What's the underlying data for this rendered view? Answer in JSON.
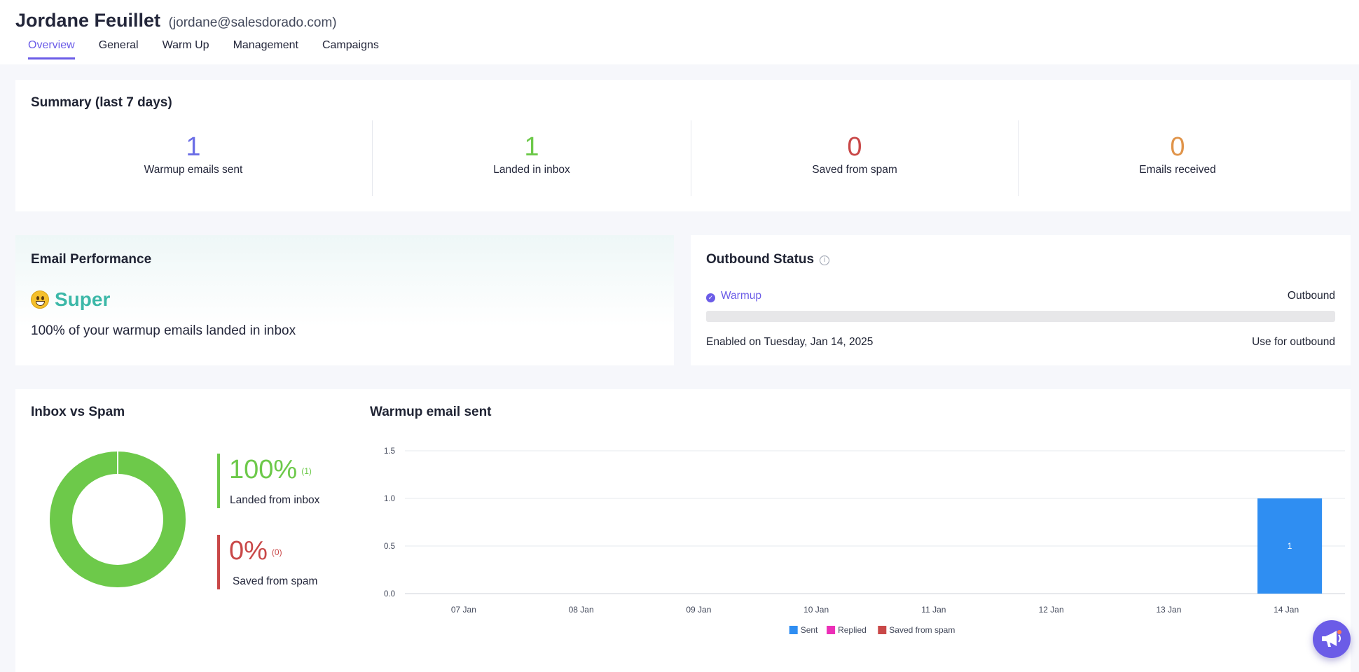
{
  "header": {
    "user_name": "Jordane Feuillet",
    "user_email": "(jordane@salesdorado.com)",
    "tabs": [
      {
        "label": "Overview",
        "active": true
      },
      {
        "label": "General",
        "active": false
      },
      {
        "label": "Warm Up",
        "active": false
      },
      {
        "label": "Management",
        "active": false
      },
      {
        "label": "Campaigns",
        "active": false
      }
    ]
  },
  "summary": {
    "title": "Summary (last 7 days)",
    "stats": [
      {
        "value": "1",
        "label": "Warmup emails sent",
        "color": "#6b6ee6"
      },
      {
        "value": "1",
        "label": "Landed in inbox",
        "color": "#6dc94a"
      },
      {
        "value": "0",
        "label": "Saved from spam",
        "color": "#c94848"
      },
      {
        "value": "0",
        "label": "Emails received",
        "color": "#e0944a"
      }
    ]
  },
  "performance": {
    "title": "Email Performance",
    "emoji_icon": "smiley-face-icon",
    "rating": "Super",
    "description": "100% of your warmup emails landed in inbox"
  },
  "outbound": {
    "title": "Outbound Status",
    "info_icon": "info-icon",
    "warmup_label": "Warmup",
    "outbound_label": "Outbound",
    "progress": 0,
    "enabled_text": "Enabled on Tuesday, Jan 14, 2025",
    "use_for_outbound": "Use for outbound"
  },
  "inbox_vs_spam": {
    "title": "Inbox vs Spam",
    "inbox_percent": "100%",
    "inbox_count": "(1)",
    "inbox_label": "Landed from inbox",
    "spam_percent": "0%",
    "spam_count": "(0)",
    "spam_label": "Saved from spam",
    "inbox_color": "#6dc94a",
    "spam_color": "#c94848",
    "donut_inbox_fraction": 1.0
  },
  "chart_data": {
    "type": "bar",
    "title": "Warmup email sent",
    "categories": [
      "07 Jan",
      "08 Jan",
      "09 Jan",
      "10 Jan",
      "11 Jan",
      "12 Jan",
      "13 Jan",
      "14 Jan"
    ],
    "series": [
      {
        "name": "Sent",
        "color": "#2f8ef2",
        "values": [
          0,
          0,
          0,
          0,
          0,
          0,
          0,
          1
        ]
      },
      {
        "name": "Replied",
        "color": "#ec2fb7",
        "values": [
          0,
          0,
          0,
          0,
          0,
          0,
          0,
          0
        ]
      },
      {
        "name": "Saved from spam",
        "color": "#c94848",
        "values": [
          0,
          0,
          0,
          0,
          0,
          0,
          0,
          0
        ]
      }
    ],
    "yticks": [
      "0.0",
      "0.5",
      "1.0",
      "1.5"
    ],
    "ylim": [
      0,
      1.5
    ],
    "grid": true,
    "legend": "bottom-center",
    "data_labels": [
      "",
      "",
      "",
      "",
      "",
      "",
      "",
      "1"
    ]
  },
  "fab": {
    "icon": "megaphone-icon"
  }
}
